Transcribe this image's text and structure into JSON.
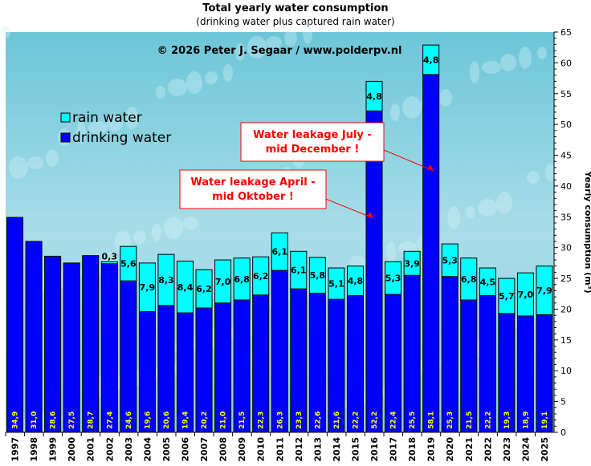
{
  "chart_data": {
    "type": "bar",
    "stacked": true,
    "title": "Total yearly water consumption",
    "subtitle": "(drinking  water plus  captured rain  water)",
    "copyright": "© 2026  Peter  J.  Segaar  /  www.polderpv.nl",
    "ylabel": "Yearly consumption (m³)",
    "ylim": [
      0,
      65
    ],
    "yticks": [
      0,
      5,
      10,
      15,
      20,
      25,
      30,
      35,
      40,
      45,
      50,
      55,
      60,
      65
    ],
    "y_axis_side": "right",
    "legend_position": "top-left",
    "categories": [
      "1997",
      "1998",
      "1999",
      "2000",
      "2001",
      "2002",
      "2003",
      "2004",
      "2005",
      "2006",
      "2007",
      "2008",
      "2009",
      "2010",
      "2011",
      "2012",
      "2013",
      "2014",
      "2015",
      "2016",
      "2017",
      "2018",
      "2019",
      "2020",
      "2021",
      "2022",
      "2023",
      "2024",
      "2025"
    ],
    "series": [
      {
        "name": "drinking water",
        "color": "#0000ff",
        "values": [
          34.9,
          31.0,
          28.6,
          27.5,
          28.7,
          27.4,
          24.6,
          19.6,
          20.6,
          19.4,
          20.2,
          21.0,
          21.5,
          22.3,
          26.3,
          23.3,
          22.6,
          21.6,
          22.2,
          52.2,
          22.4,
          25.5,
          58.1,
          25.3,
          21.5,
          22.2,
          19.3,
          18.9,
          19.1
        ]
      },
      {
        "name": "rain water",
        "color": "#00ffff",
        "values": [
          0,
          0,
          0,
          0,
          0,
          0.3,
          5.6,
          7.9,
          8.3,
          8.4,
          6.2,
          7.0,
          6.8,
          6.2,
          6.1,
          6.1,
          5.8,
          5.1,
          4.8,
          4.8,
          5.3,
          3.9,
          4.8,
          5.3,
          6.8,
          4.5,
          5.7,
          7.0,
          7.9
        ]
      }
    ],
    "annotations": [
      {
        "text": [
          "Water leakage April -",
          "mid Oktober !"
        ],
        "points_to": "2016"
      },
      {
        "text": [
          "Water leakage July -",
          "mid December !"
        ],
        "points_to": "2019"
      }
    ]
  }
}
